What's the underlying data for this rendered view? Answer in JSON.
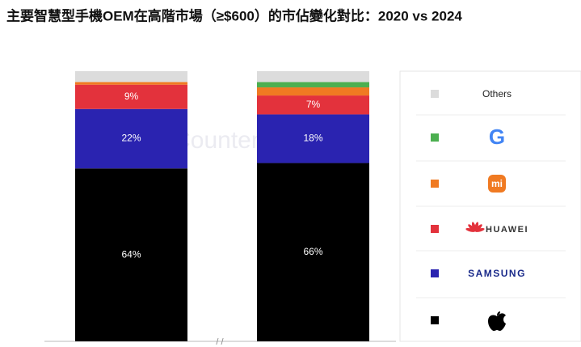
{
  "chart_data": {
    "type": "stacked_bar",
    "title": "主要智慧型手機OEM在高階市場（≥$600）的市佔變化對比：2020 vs 2024",
    "watermark": "Counterpoint",
    "categories": [
      null,
      null
    ],
    "ylim": [
      0,
      100
    ],
    "series": [
      {
        "name": null,
        "color": "#000000",
        "values": [
          64,
          66
        ],
        "value_labels": [
          "64%",
          "66%"
        ]
      },
      {
        "name": "SAMSUNG",
        "color": "#2a23b0",
        "values": [
          22,
          18
        ],
        "value_labels": [
          "22%",
          "18%"
        ]
      },
      {
        "name": "HUAWEI",
        "color": "#e3323c",
        "values": [
          9,
          7
        ],
        "value_labels": [
          "9%",
          "7%"
        ]
      },
      {
        "name": "mi",
        "color": "#f07a22",
        "values": [
          1,
          3
        ],
        "value_labels": [
          null,
          null
        ]
      },
      {
        "name": "G",
        "color": "#4caf50",
        "values": [
          0,
          2
        ],
        "value_labels": [
          null,
          null
        ]
      },
      {
        "name": "Others",
        "color": "#dcdcdc",
        "values": [
          4,
          4
        ],
        "value_labels": [
          null,
          null
        ]
      }
    ]
  }
}
